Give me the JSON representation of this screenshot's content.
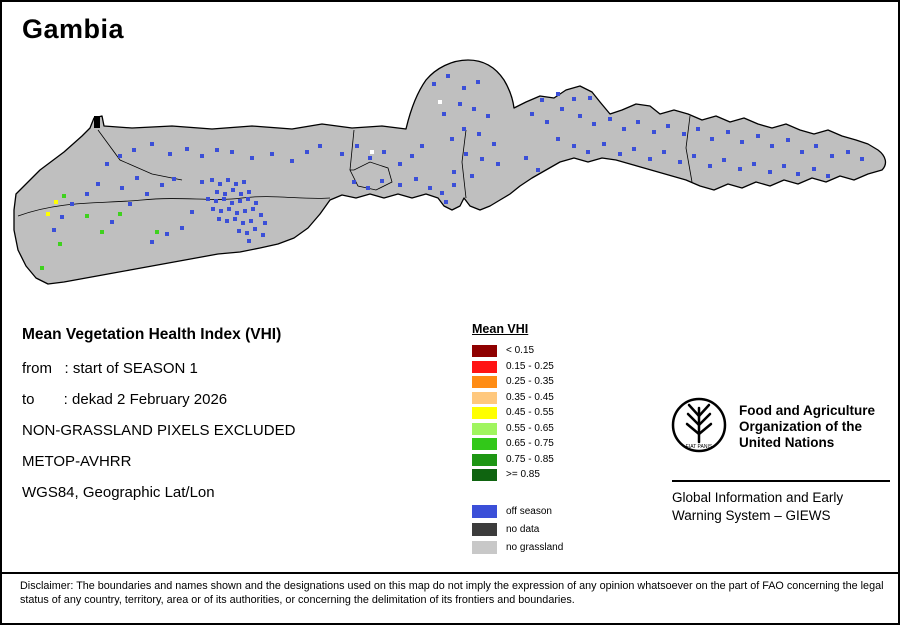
{
  "title": "Gambia",
  "info": {
    "heading": "Mean Vegetation Health Index (VHI)",
    "lines": [
      "from   : start of SEASON 1",
      "to       : dekad 2 February 2026",
      "NON-GRASSLAND PIXELS EXCLUDED",
      "METOP-AVHRR",
      "WGS84, Geographic Lat/Lon"
    ]
  },
  "legend": {
    "title": "Mean VHI",
    "vhi_items": [
      {
        "color": "#8f0000",
        "label": "< 0.15"
      },
      {
        "color": "#ff1414",
        "label": "0.15 - 0.25"
      },
      {
        "color": "#ff8c14",
        "label": "0.25 - 0.35"
      },
      {
        "color": "#ffc87d",
        "label": "0.35 - 0.45"
      },
      {
        "color": "#ffff00",
        "label": "0.45 - 0.55"
      },
      {
        "color": "#a0f55f",
        "label": "0.55 - 0.65"
      },
      {
        "color": "#32c819",
        "label": "0.65 - 0.75"
      },
      {
        "color": "#1e9614",
        "label": "0.75 - 0.85"
      },
      {
        "color": "#0f6410",
        "label": ">= 0.85"
      }
    ],
    "other_items": [
      {
        "color": "#3b4fd8",
        "label": "off season"
      },
      {
        "color": "#3c3c3c",
        "label": "no data"
      },
      {
        "color": "#c8c8c8",
        "label": "no grassland"
      }
    ]
  },
  "fao": {
    "org_name": "Food and Agriculture\nOrganization of the\nUnited Nations",
    "motto": "FIAT PANIS",
    "giews": "Global Information and Early\nWarning System – GIEWS"
  },
  "disclaimer": "Disclaimer: The boundaries and names shown and the designations used on this map do not imply the expression of any opinion whatsoever on the part of FAO concerning the legal status of any country, territory, area or of its authorities, or concerning the delimitation of its frontiers and boundaries.",
  "map": {
    "colors": {
      "no_grassland": "#bfbfbf",
      "off_season": "#3b4fd8",
      "no_data": "#3c3c3c",
      "outline": "#000000",
      "green": "#3fd11e",
      "yellow": "#ffff00",
      "white": "#ffffff"
    },
    "dots": {
      "blue": [
        [
          52,
          228
        ],
        [
          60,
          215
        ],
        [
          70,
          202
        ],
        [
          85,
          192
        ],
        [
          96,
          182
        ],
        [
          110,
          220
        ],
        [
          120,
          186
        ],
        [
          128,
          202
        ],
        [
          135,
          176
        ],
        [
          145,
          192
        ],
        [
          150,
          240
        ],
        [
          160,
          183
        ],
        [
          165,
          232
        ],
        [
          172,
          177
        ],
        [
          180,
          226
        ],
        [
          190,
          210
        ],
        [
          105,
          162
        ],
        [
          118,
          154
        ],
        [
          132,
          148
        ],
        [
          150,
          142
        ],
        [
          168,
          152
        ],
        [
          185,
          147
        ],
        [
          200,
          154
        ],
        [
          215,
          148
        ],
        [
          230,
          150
        ],
        [
          250,
          156
        ],
        [
          270,
          152
        ],
        [
          290,
          159
        ],
        [
          305,
          150
        ],
        [
          318,
          144
        ],
        [
          200,
          180
        ],
        [
          210,
          178
        ],
        [
          218,
          182
        ],
        [
          226,
          178
        ],
        [
          234,
          182
        ],
        [
          242,
          180
        ],
        [
          215,
          190
        ],
        [
          223,
          192
        ],
        [
          231,
          188
        ],
        [
          239,
          192
        ],
        [
          247,
          190
        ],
        [
          206,
          197
        ],
        [
          214,
          199
        ],
        [
          222,
          197
        ],
        [
          230,
          201
        ],
        [
          238,
          199
        ],
        [
          246,
          197
        ],
        [
          254,
          201
        ],
        [
          211,
          207
        ],
        [
          219,
          209
        ],
        [
          227,
          207
        ],
        [
          235,
          211
        ],
        [
          243,
          209
        ],
        [
          251,
          207
        ],
        [
          217,
          217
        ],
        [
          225,
          219
        ],
        [
          233,
          217
        ],
        [
          241,
          221
        ],
        [
          249,
          219
        ],
        [
          259,
          213
        ],
        [
          263,
          221
        ],
        [
          237,
          229
        ],
        [
          245,
          231
        ],
        [
          253,
          227
        ],
        [
          261,
          233
        ],
        [
          247,
          239
        ],
        [
          340,
          152
        ],
        [
          355,
          144
        ],
        [
          368,
          156
        ],
        [
          382,
          150
        ],
        [
          398,
          162
        ],
        [
          410,
          154
        ],
        [
          420,
          144
        ],
        [
          352,
          180
        ],
        [
          366,
          186
        ],
        [
          380,
          179
        ],
        [
          398,
          183
        ],
        [
          414,
          177
        ],
        [
          428,
          186
        ],
        [
          440,
          191
        ],
        [
          452,
          183
        ],
        [
          444,
          200
        ],
        [
          432,
          82
        ],
        [
          446,
          74
        ],
        [
          462,
          86
        ],
        [
          476,
          80
        ],
        [
          458,
          102
        ],
        [
          472,
          107
        ],
        [
          442,
          112
        ],
        [
          486,
          114
        ],
        [
          462,
          127
        ],
        [
          477,
          132
        ],
        [
          450,
          137
        ],
        [
          492,
          142
        ],
        [
          464,
          152
        ],
        [
          480,
          157
        ],
        [
          496,
          162
        ],
        [
          452,
          170
        ],
        [
          470,
          174
        ],
        [
          530,
          112
        ],
        [
          545,
          120
        ],
        [
          560,
          107
        ],
        [
          578,
          114
        ],
        [
          592,
          122
        ],
        [
          608,
          117
        ],
        [
          622,
          127
        ],
        [
          636,
          120
        ],
        [
          652,
          130
        ],
        [
          666,
          124
        ],
        [
          682,
          132
        ],
        [
          696,
          127
        ],
        [
          710,
          137
        ],
        [
          726,
          130
        ],
        [
          740,
          140
        ],
        [
          756,
          134
        ],
        [
          770,
          144
        ],
        [
          786,
          138
        ],
        [
          800,
          150
        ],
        [
          814,
          144
        ],
        [
          830,
          154
        ],
        [
          846,
          150
        ],
        [
          860,
          157
        ],
        [
          556,
          137
        ],
        [
          572,
          144
        ],
        [
          586,
          150
        ],
        [
          602,
          142
        ],
        [
          618,
          152
        ],
        [
          632,
          147
        ],
        [
          648,
          157
        ],
        [
          662,
          150
        ],
        [
          678,
          160
        ],
        [
          692,
          154
        ],
        [
          708,
          164
        ],
        [
          722,
          158
        ],
        [
          738,
          167
        ],
        [
          752,
          162
        ],
        [
          768,
          170
        ],
        [
          782,
          164
        ],
        [
          796,
          172
        ],
        [
          812,
          167
        ],
        [
          826,
          174
        ],
        [
          540,
          98
        ],
        [
          556,
          92
        ],
        [
          572,
          97
        ],
        [
          588,
          96
        ],
        [
          524,
          156
        ],
        [
          536,
          168
        ]
      ],
      "green": [
        [
          62,
          194
        ],
        [
          85,
          214
        ],
        [
          100,
          230
        ],
        [
          58,
          242
        ],
        [
          40,
          266
        ],
        [
          118,
          212
        ],
        [
          155,
          230
        ]
      ],
      "yellow": [
        [
          46,
          212
        ],
        [
          54,
          200
        ]
      ],
      "white": [
        [
          370,
          150
        ],
        [
          438,
          100
        ]
      ]
    }
  }
}
